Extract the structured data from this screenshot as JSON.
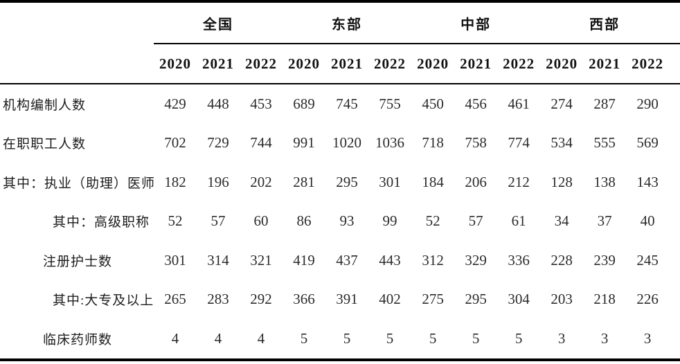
{
  "colors": {
    "background": "#ffffff",
    "text": "#1f1f1f",
    "rule": "#000000"
  },
  "table": {
    "col_groups": [
      {
        "label": "全国",
        "years": [
          "2020",
          "2021",
          "2022"
        ]
      },
      {
        "label": "东部",
        "years": [
          "2020",
          "2021",
          "2022"
        ]
      },
      {
        "label": "中部",
        "years": [
          "2020",
          "2021",
          "2022"
        ]
      },
      {
        "label": "西部",
        "years": [
          "2020",
          "2021",
          "2022"
        ]
      }
    ],
    "rows": [
      {
        "label": "机构编制人数",
        "indent": 0,
        "values": [
          "429",
          "448",
          "453",
          "689",
          "745",
          "755",
          "450",
          "456",
          "461",
          "274",
          "287",
          "290"
        ]
      },
      {
        "label": "在职职工人数",
        "indent": 0,
        "values": [
          "702",
          "729",
          "744",
          "991",
          "1020",
          "1036",
          "718",
          "758",
          "774",
          "534",
          "555",
          "569"
        ]
      },
      {
        "label": "其中：执业（助理）医师",
        "indent": 0,
        "values": [
          "182",
          "196",
          "202",
          "281",
          "295",
          "301",
          "184",
          "206",
          "212",
          "128",
          "138",
          "143"
        ]
      },
      {
        "label": "其中：高级职称",
        "indent": 2,
        "values": [
          "52",
          "57",
          "60",
          "86",
          "93",
          "99",
          "52",
          "57",
          "61",
          "34",
          "37",
          "40"
        ]
      },
      {
        "label": "注册护士数",
        "indent": 1,
        "values": [
          "301",
          "314",
          "321",
          "419",
          "437",
          "443",
          "312",
          "329",
          "336",
          "228",
          "239",
          "245"
        ]
      },
      {
        "label": "其中:大专及以上",
        "indent": 2,
        "values": [
          "265",
          "283",
          "292",
          "366",
          "391",
          "402",
          "275",
          "295",
          "304",
          "203",
          "218",
          "226"
        ]
      },
      {
        "label": "临床药师数",
        "indent": 1,
        "values": [
          "4",
          "4",
          "4",
          "5",
          "5",
          "5",
          "5",
          "5",
          "5",
          "3",
          "3",
          "3"
        ]
      }
    ]
  }
}
